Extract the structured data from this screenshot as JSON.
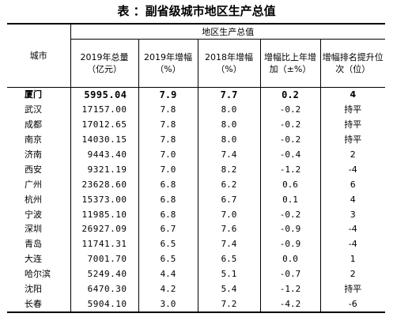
{
  "title": "表 ：副省级城市地区生产总值",
  "header": {
    "city": "城市",
    "group": "地区生产总值",
    "col1": "2019年总量（亿元）",
    "col2": "2019年增幅（%）",
    "col3": "2018年增幅（%）",
    "col4": "增幅比上年增加（±%）",
    "col5": "增幅排名提升位次（位）"
  },
  "rows": [
    {
      "city": "厦门",
      "total": "5995.04",
      "g2019": "7.9",
      "g2018": "7.7",
      "diff": "0.2",
      "rank": "4"
    },
    {
      "city": "武汉",
      "total": "17157.00",
      "g2019": "7.8",
      "g2018": "8.0",
      "diff": "-0.2",
      "rank": "持平"
    },
    {
      "city": "成都",
      "total": "17012.65",
      "g2019": "7.8",
      "g2018": "8.0",
      "diff": "-0.2",
      "rank": "持平"
    },
    {
      "city": "南京",
      "total": "14030.15",
      "g2019": "7.8",
      "g2018": "8.0",
      "diff": "-0.2",
      "rank": "持平"
    },
    {
      "city": "济南",
      "total": "9443.40",
      "g2019": "7.0",
      "g2018": "7.4",
      "diff": "-0.4",
      "rank": "2"
    },
    {
      "city": "西安",
      "total": "9321.19",
      "g2019": "7.0",
      "g2018": "8.2",
      "diff": "-1.2",
      "rank": "-4"
    },
    {
      "city": "广州",
      "total": "23628.60",
      "g2019": "6.8",
      "g2018": "6.2",
      "diff": "0.6",
      "rank": "6"
    },
    {
      "city": "杭州",
      "total": "15373.00",
      "g2019": "6.8",
      "g2018": "6.7",
      "diff": "0.1",
      "rank": "4"
    },
    {
      "city": "宁波",
      "total": "11985.10",
      "g2019": "6.8",
      "g2018": "7.0",
      "diff": "-0.2",
      "rank": "3"
    },
    {
      "city": "深圳",
      "total": "26927.09",
      "g2019": "6.7",
      "g2018": "7.6",
      "diff": "-0.9",
      "rank": "-4"
    },
    {
      "city": "青岛",
      "total": "11741.31",
      "g2019": "6.5",
      "g2018": "7.4",
      "diff": "-0.9",
      "rank": "-4"
    },
    {
      "city": "大连",
      "total": "7001.70",
      "g2019": "6.5",
      "g2018": "6.5",
      "diff": "0.0",
      "rank": "1"
    },
    {
      "city": "哈尔滨",
      "total": "5249.40",
      "g2019": "4.4",
      "g2018": "5.1",
      "diff": "-0.7",
      "rank": "2"
    },
    {
      "city": "沈阳",
      "total": "6470.30",
      "g2019": "4.2",
      "g2018": "5.4",
      "diff": "-1.2",
      "rank": "持平"
    },
    {
      "city": "长春",
      "total": "5904.10",
      "g2019": "3.0",
      "g2018": "7.2",
      "diff": "-4.2",
      "rank": "-6"
    }
  ]
}
